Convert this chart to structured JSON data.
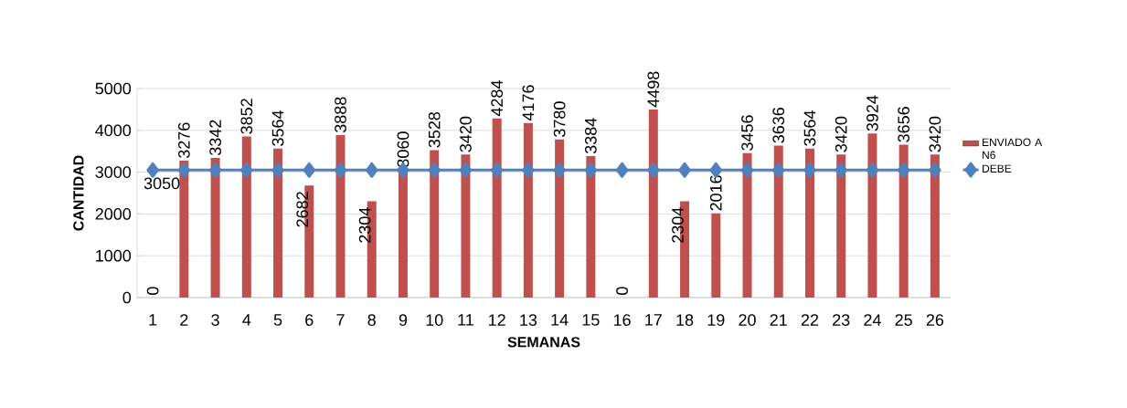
{
  "chart_data": {
    "type": "bar",
    "xlabel": "SEMANAS",
    "ylabel": "CANTIDAD",
    "categories": [
      "1",
      "2",
      "3",
      "4",
      "5",
      "6",
      "7",
      "8",
      "9",
      "10",
      "11",
      "12",
      "13",
      "14",
      "15",
      "16",
      "17",
      "18",
      "19",
      "20",
      "21",
      "22",
      "23",
      "24",
      "25",
      "26"
    ],
    "series": [
      {
        "name": "ENVIADO A N6",
        "color": "#c0504d",
        "values": [
          0,
          3276,
          3342,
          3852,
          3564,
          2682,
          3888,
          2304,
          3060,
          3528,
          3420,
          4284,
          4176,
          3780,
          3384,
          0,
          4498,
          2304,
          2016,
          3456,
          3636,
          3564,
          3420,
          3924,
          3656,
          3420
        ]
      },
      {
        "name": "DEBE",
        "type": "line",
        "color": "#4f81bd",
        "values": [
          3050,
          3050,
          3050,
          3050,
          3050,
          3050,
          3050,
          3050,
          3050,
          3050,
          3050,
          3050,
          3050,
          3050,
          3050,
          3050,
          3050,
          3050,
          3050,
          3050,
          3050,
          3050,
          3050,
          3050,
          3050,
          3050
        ],
        "value_labels": [
          "3050",
          null,
          null,
          null,
          null,
          null,
          null,
          null,
          null,
          null,
          null,
          null,
          null,
          null,
          null,
          null,
          null,
          null,
          null,
          null,
          null,
          null,
          null,
          null,
          null,
          null
        ]
      }
    ],
    "ylim": [
      0,
      5000
    ],
    "yticks": [
      0,
      1000,
      2000,
      3000,
      4000,
      5000
    ],
    "grid": "y",
    "legend": "right",
    "marker": "diamond",
    "data_labels": true
  }
}
